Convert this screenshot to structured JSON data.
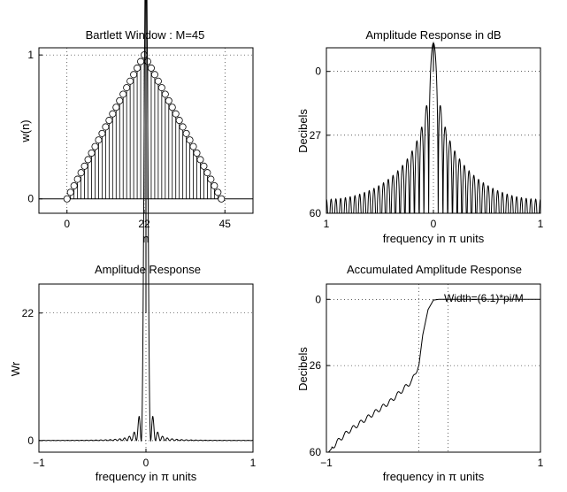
{
  "chart_data": [
    {
      "type": "stem",
      "title": "Bartlett Window : M=45",
      "xlabel": "n",
      "ylabel": "w(n)",
      "xlim": [
        -8,
        53
      ],
      "ylim": [
        -0.1,
        1.05
      ],
      "xticks": [
        0,
        22,
        45
      ],
      "xtick_labels": [
        "0",
        "22",
        "45"
      ],
      "yticks": [
        0,
        1
      ],
      "ytick_labels": [
        "0",
        "1"
      ],
      "grid": "dotted at ticks",
      "n_start": 0,
      "values": [
        0,
        0.0455,
        0.0909,
        0.1364,
        0.1818,
        0.2273,
        0.2727,
        0.3182,
        0.3636,
        0.4091,
        0.4545,
        0.5,
        0.5455,
        0.5909,
        0.6364,
        0.6818,
        0.7273,
        0.7727,
        0.8182,
        0.8636,
        0.9091,
        0.9545,
        1,
        0.9545,
        0.9091,
        0.8636,
        0.8182,
        0.7727,
        0.7273,
        0.6818,
        0.6364,
        0.5909,
        0.5455,
        0.5,
        0.4545,
        0.4091,
        0.3636,
        0.3182,
        0.2727,
        0.2273,
        0.1818,
        0.1364,
        0.0909,
        0.0455,
        0
      ]
    },
    {
      "type": "line",
      "title": "Amplitude Response in dB",
      "xlabel": "frequency in π units",
      "ylabel": "Decibels",
      "xlim": [
        -1,
        1
      ],
      "ylim": [
        -60,
        10
      ],
      "y_reversed_labels": true,
      "xticks": [
        -1,
        0,
        1
      ],
      "xtick_labels": [
        "1",
        "0",
        "1"
      ],
      "yticks": [
        0,
        -27,
        -60
      ],
      "ytick_labels": [
        "0",
        "27",
        "60"
      ],
      "grid": "dotted at ticks",
      "formula": "20*log10(|sin(22.5*w)/(22*sin(w/2))|^2), floored at -60"
    },
    {
      "type": "line",
      "title": "Amplitude Response",
      "xlabel": "frequency in π units",
      "ylabel": "Wr",
      "xlim": [
        -1,
        1
      ],
      "ylim": [
        -2,
        27
      ],
      "xticks": [
        -1,
        0,
        1
      ],
      "xtick_labels": [
        "−1",
        "0",
        "1"
      ],
      "yticks": [
        0,
        22
      ],
      "ytick_labels": [
        "0",
        "22"
      ],
      "grid": "dotted at ticks",
      "formula": "(sin(22.5*w)/sin(w/2))^2 / 22 (zero-phase amplitude, peak 22)"
    },
    {
      "type": "line",
      "title": "Accumulated Amplitude Response",
      "xlabel": "frequency in π units",
      "ylabel": "Decibels",
      "xlim": [
        -1,
        1
      ],
      "ylim": [
        -60,
        6
      ],
      "xticks": [
        -1,
        1
      ],
      "xtick_labels": [
        "−1",
        "1"
      ],
      "yticks": [
        0,
        -26,
        -60
      ],
      "ytick_labels": [
        "0",
        "26",
        "60"
      ],
      "grid": "dotted at ticks",
      "vlines": [
        -0.136,
        0.136
      ],
      "annotation": "Width=(6.1)*pi/M",
      "curve": [
        [
          -1,
          -60
        ],
        [
          -0.98,
          -60
        ],
        [
          -0.9,
          -56
        ],
        [
          -0.8,
          -52
        ],
        [
          -0.7,
          -49
        ],
        [
          -0.6,
          -46
        ],
        [
          -0.5,
          -43
        ],
        [
          -0.4,
          -40
        ],
        [
          -0.3,
          -36
        ],
        [
          -0.2,
          -32
        ],
        [
          -0.16,
          -28
        ],
        [
          -0.136,
          -26
        ],
        [
          -0.1,
          -14
        ],
        [
          -0.05,
          -4
        ],
        [
          0,
          -0.3
        ],
        [
          0.05,
          0
        ],
        [
          0.136,
          0
        ],
        [
          1,
          0
        ]
      ]
    }
  ]
}
